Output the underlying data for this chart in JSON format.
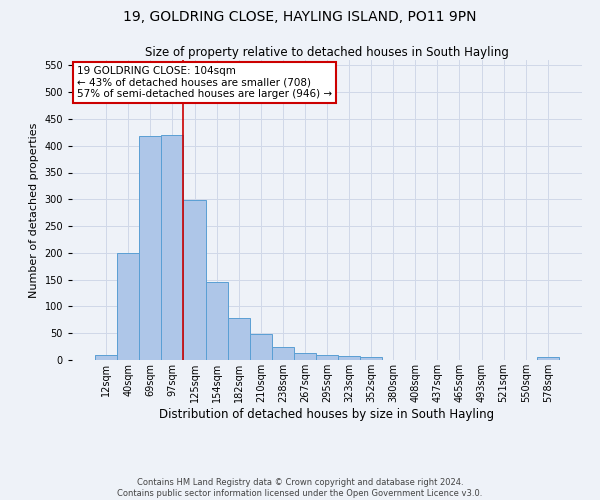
{
  "title": "19, GOLDRING CLOSE, HAYLING ISLAND, PO11 9PN",
  "subtitle": "Size of property relative to detached houses in South Hayling",
  "xlabel": "Distribution of detached houses by size in South Hayling",
  "ylabel": "Number of detached properties",
  "footnote1": "Contains HM Land Registry data © Crown copyright and database right 2024.",
  "footnote2": "Contains public sector information licensed under the Open Government Licence v3.0.",
  "categories": [
    "12sqm",
    "40sqm",
    "69sqm",
    "97sqm",
    "125sqm",
    "154sqm",
    "182sqm",
    "210sqm",
    "238sqm",
    "267sqm",
    "295sqm",
    "323sqm",
    "352sqm",
    "380sqm",
    "408sqm",
    "437sqm",
    "465sqm",
    "493sqm",
    "521sqm",
    "550sqm",
    "578sqm"
  ],
  "values": [
    10,
    200,
    418,
    420,
    299,
    145,
    78,
    49,
    25,
    13,
    10,
    8,
    6,
    0,
    0,
    0,
    0,
    0,
    0,
    0,
    5
  ],
  "bar_color": "#aec6e8",
  "bar_edge_color": "#5a9fd4",
  "grid_color": "#d0d8e8",
  "annotation_text": "19 GOLDRING CLOSE: 104sqm\n← 43% of detached houses are smaller (708)\n57% of semi-detached houses are larger (946) →",
  "annotation_box_color": "#ffffff",
  "annotation_box_edge": "#cc0000",
  "vline_x": 3.5,
  "vline_color": "#cc0000",
  "ylim": [
    0,
    560
  ],
  "yticks": [
    0,
    50,
    100,
    150,
    200,
    250,
    300,
    350,
    400,
    450,
    500,
    550
  ],
  "bg_color": "#eef2f8",
  "title_fontsize": 10,
  "subtitle_fontsize": 8.5,
  "ylabel_fontsize": 8,
  "xlabel_fontsize": 8.5,
  "tick_fontsize": 7,
  "annot_fontsize": 7.5,
  "footnote_fontsize": 6
}
